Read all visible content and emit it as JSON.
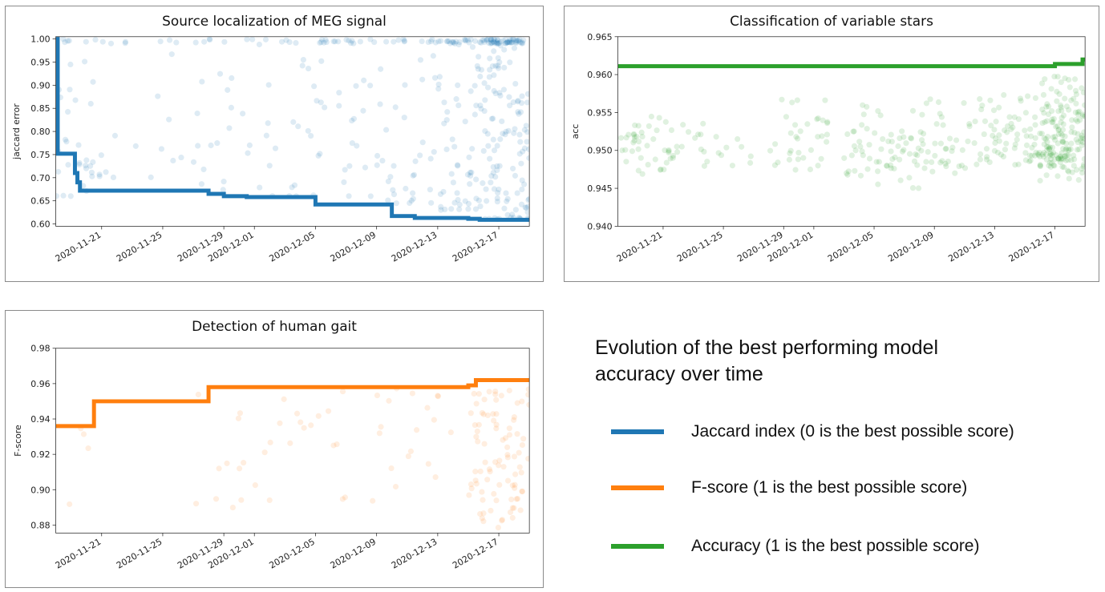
{
  "chart_data": [
    {
      "id": "meg",
      "type": "scatter",
      "title": "Source localization of MEG signal",
      "xlabel": "",
      "ylabel": "jaccard error",
      "xlim": [
        "2020-11-18",
        "2020-12-19"
      ],
      "ylim": [
        0.595,
        1.005
      ],
      "yticks": [
        "0.60",
        "0.65",
        "0.70",
        "0.75",
        "0.80",
        "0.85",
        "0.90",
        "0.95",
        "1.00"
      ],
      "xticks": [
        "2020-11-21",
        "2020-11-25",
        "2020-11-29",
        "2020-12-01",
        "2020-12-05",
        "2020-12-09",
        "2020-12-13",
        "2020-12-17"
      ],
      "grid": false,
      "color": "#1f77b4",
      "best_line": [
        [
          "2020-11-18T00:00",
          1.0
        ],
        [
          "2020-11-18T03:00",
          0.752
        ],
        [
          "2020-11-19T06:00",
          0.71
        ],
        [
          "2020-11-19T10:00",
          0.69
        ],
        [
          "2020-11-19T14:00",
          0.672
        ],
        [
          "2020-11-28T00:00",
          0.665
        ],
        [
          "2020-11-29T00:00",
          0.66
        ],
        [
          "2020-11-30T12:00",
          0.658
        ],
        [
          "2020-12-05T00:00",
          0.642
        ],
        [
          "2020-12-10T00:00",
          0.617
        ],
        [
          "2020-12-11T12:00",
          0.613
        ],
        [
          "2020-12-15T00:00",
          0.611
        ],
        [
          "2020-12-15T18:00",
          0.609
        ],
        [
          "2020-12-19T00:00",
          0.609
        ]
      ],
      "trial_clusters": [
        {
          "start": "2020-11-18",
          "end": "2020-11-21",
          "ymin": 0.66,
          "ymax": 1.0,
          "count": 40
        },
        {
          "start": "2020-11-21",
          "end": "2020-11-27",
          "ymin": 0.7,
          "ymax": 1.0,
          "count": 18
        },
        {
          "start": "2020-11-27",
          "end": "2020-12-02",
          "ymin": 0.67,
          "ymax": 1.0,
          "count": 32
        },
        {
          "start": "2020-12-02",
          "end": "2020-12-09",
          "ymin": 0.66,
          "ymax": 1.0,
          "count": 58
        },
        {
          "start": "2020-12-09",
          "end": "2020-12-13",
          "ymin": 0.64,
          "ymax": 1.0,
          "count": 45
        },
        {
          "start": "2020-12-13",
          "end": "2020-12-16",
          "ymin": 0.63,
          "ymax": 1.0,
          "count": 80
        },
        {
          "start": "2020-12-16",
          "end": "2020-12-19",
          "ymin": 0.61,
          "ymax": 1.0,
          "count": 170
        }
      ]
    },
    {
      "id": "stars",
      "type": "scatter",
      "title": "Classification of variable stars",
      "xlabel": "",
      "ylabel": "acc",
      "xlim": [
        "2020-11-18",
        "2020-12-19"
      ],
      "ylim": [
        0.94,
        0.965
      ],
      "yticks": [
        "0.940",
        "0.945",
        "0.950",
        "0.955",
        "0.960",
        "0.965"
      ],
      "xticks": [
        "2020-11-21",
        "2020-11-25",
        "2020-11-29",
        "2020-12-01",
        "2020-12-05",
        "2020-12-09",
        "2020-12-13",
        "2020-12-17"
      ],
      "grid": false,
      "color": "#2ca02c",
      "best_line": [
        [
          "2020-11-18T00:00",
          0.9611
        ],
        [
          "2020-12-17T00:00",
          0.9611
        ],
        [
          "2020-12-17T00:00",
          0.9614
        ],
        [
          "2020-12-18T20:00",
          0.9614
        ],
        [
          "2020-12-18T20:00",
          0.962
        ],
        [
          "2020-12-19T00:00",
          0.962
        ]
      ],
      "trial_clusters": [
        {
          "start": "2020-11-18",
          "end": "2020-11-22",
          "ymin": 0.944,
          "ymax": 0.955,
          "count": 45
        },
        {
          "start": "2020-11-22",
          "end": "2020-11-27",
          "ymin": 0.944,
          "ymax": 0.955,
          "count": 20
        },
        {
          "start": "2020-11-28",
          "end": "2020-12-02",
          "ymin": 0.944,
          "ymax": 0.957,
          "count": 35
        },
        {
          "start": "2020-12-03",
          "end": "2020-12-08",
          "ymin": 0.941,
          "ymax": 0.956,
          "count": 65
        },
        {
          "start": "2020-12-08",
          "end": "2020-12-13",
          "ymin": 0.943,
          "ymax": 0.957,
          "count": 60
        },
        {
          "start": "2020-12-13",
          "end": "2020-12-16",
          "ymin": 0.944,
          "ymax": 0.958,
          "count": 55
        },
        {
          "start": "2020-12-16",
          "end": "2020-12-19",
          "ymin": 0.941,
          "ymax": 0.96,
          "count": 170
        }
      ]
    },
    {
      "id": "gait",
      "type": "scatter",
      "title": "Detection of human gait",
      "xlabel": "",
      "ylabel": "F-score",
      "xlim": [
        "2020-11-18",
        "2020-12-19"
      ],
      "ylim": [
        0.8755,
        0.98
      ],
      "yticks": [
        "0.88",
        "0.90",
        "0.92",
        "0.94",
        "0.96",
        "0.98"
      ],
      "xticks": [
        "2020-11-21",
        "2020-11-25",
        "2020-11-29",
        "2020-12-01",
        "2020-12-05",
        "2020-12-09",
        "2020-12-13",
        "2020-12-17"
      ],
      "grid": false,
      "color": "#ff7f0e",
      "best_line": [
        [
          "2020-11-18T00:00",
          0.936
        ],
        [
          "2020-11-20T12:00",
          0.936
        ],
        [
          "2020-11-20T12:00",
          0.95
        ],
        [
          "2020-11-28T00:00",
          0.95
        ],
        [
          "2020-11-28T00:00",
          0.958
        ],
        [
          "2020-12-15T00:00",
          0.958
        ],
        [
          "2020-12-15T00:00",
          0.959
        ],
        [
          "2020-12-15T12:00",
          0.959
        ],
        [
          "2020-12-15T12:00",
          0.962
        ],
        [
          "2020-12-19T00:00",
          0.962
        ]
      ],
      "trial_clusters": [
        {
          "start": "2020-11-18",
          "end": "2020-11-22",
          "ymin": 0.876,
          "ymax": 0.935,
          "count": 4
        },
        {
          "start": "2020-11-27",
          "end": "2020-12-02",
          "ymin": 0.888,
          "ymax": 0.958,
          "count": 14
        },
        {
          "start": "2020-12-02",
          "end": "2020-12-09",
          "ymin": 0.89,
          "ymax": 0.957,
          "count": 16
        },
        {
          "start": "2020-12-09",
          "end": "2020-12-14",
          "ymin": 0.9,
          "ymax": 0.958,
          "count": 18
        },
        {
          "start": "2020-12-15",
          "end": "2020-12-19",
          "ymin": 0.877,
          "ymax": 0.957,
          "count": 90
        }
      ]
    }
  ],
  "legend": {
    "title": "Evolution of the best performing model accuracy over time",
    "items": [
      {
        "label": "Jaccard index (0 is the best possible score)",
        "color": "#1f77b4"
      },
      {
        "label": "F-score (1 is the best possible score)",
        "color": "#ff7f0e"
      },
      {
        "label": "Accuracy (1 is the best possible score)",
        "color": "#2ca02c"
      }
    ]
  }
}
